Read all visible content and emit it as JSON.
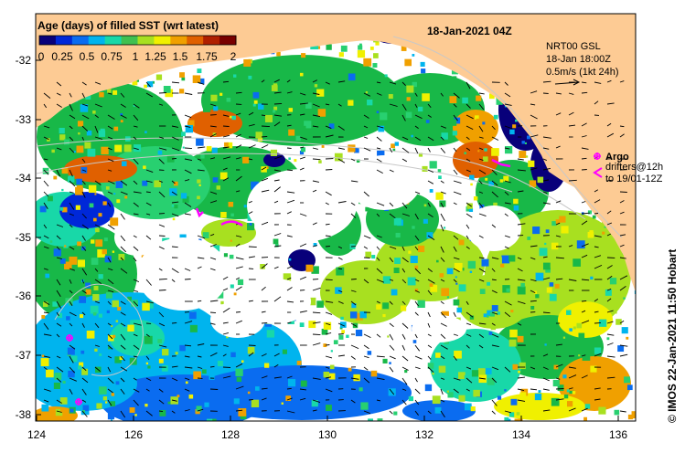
{
  "map": {
    "title": "Age (days) of filled SST (wrt latest)",
    "date_label": "18-Jan-2021 04Z",
    "credit": "© IMOS 22-Jan-2021 11:50 Hobart",
    "land_color": "#fdcb94",
    "no_data_color": "#ffffff",
    "longitude_ticks": [
      "124",
      "126",
      "128",
      "130",
      "132",
      "134",
      "136"
    ],
    "latitude_ticks": [
      "-32",
      "-33",
      "-34",
      "-35",
      "-36",
      "-37",
      "-38"
    ],
    "colorbar": {
      "tick_labels": [
        "0",
        "0.25",
        "0.5",
        "0.75",
        "1",
        "1.25",
        "1.5",
        "1.75",
        "2"
      ],
      "colors": [
        "#08007a",
        "#0028d8",
        "#0a6cf0",
        "#00b4ee",
        "#18d8a8",
        "#40c050",
        "#a8e020",
        "#f0f000",
        "#f0a000",
        "#e06000",
        "#b02000",
        "#780000"
      ]
    },
    "currents_legend": {
      "product": "NRT00 GSL",
      "time": "18-Jan 18:00Z",
      "scale": "0.5m/s (1kt 24h)"
    },
    "argo_legend": {
      "argo_label": "Argo",
      "drifters_label": "drifters@12h",
      "drifters_to_label": "to 19/01-12Z"
    },
    "marker_color": "#ff00ff"
  }
}
